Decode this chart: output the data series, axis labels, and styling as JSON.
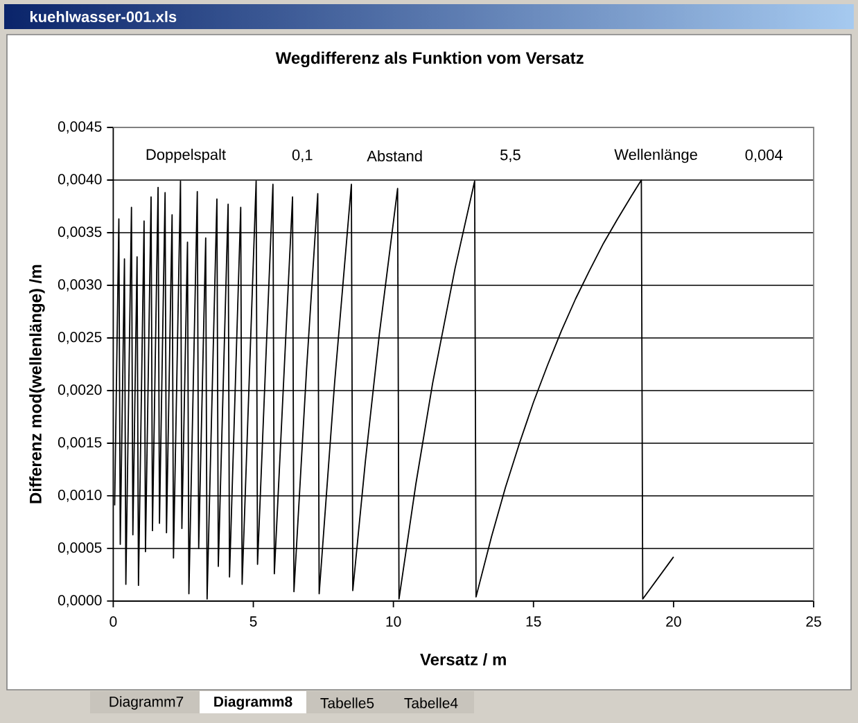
{
  "chart_data": {
    "type": "line",
    "title": "Wegdifferenz als Funktion vom Versatz",
    "xlabel": "Versatz / m",
    "ylabel": "Differenz mod(wellenlänge) /m",
    "series": [
      {
        "color": "#000000",
        "x": [
          0.05,
          0.2,
          0.25,
          0.4,
          0.45,
          0.65,
          0.7,
          0.85,
          0.9,
          1.1,
          1.15,
          1.35,
          1.4,
          1.6,
          1.65,
          1.85,
          1.9,
          2.1,
          2.15,
          2.4,
          2.45,
          2.65,
          2.7,
          3.0,
          3.05,
          3.3,
          3.35,
          3.7,
          3.75,
          4.1,
          4.15,
          4.55,
          4.6,
          5.1,
          5.15,
          5.7,
          5.75,
          6.4,
          6.45,
          6.9,
          7.3,
          7.35,
          7.9,
          8.5,
          8.55,
          9.0,
          9.5,
          10.15,
          10.2,
          10.8,
          11.4,
          12.2,
          12.9,
          12.95,
          13.5,
          14.0,
          14.5,
          15.0,
          15.5,
          16.0,
          16.5,
          17.0,
          17.5,
          18.0,
          18.5,
          18.85,
          18.9,
          20.0
        ],
        "values": [
          0.00091,
          0.00363,
          0.00054,
          0.00325,
          0.00016,
          0.00374,
          0.00063,
          0.00327,
          0.00015,
          0.00361,
          0.00047,
          0.00384,
          0.00067,
          0.00393,
          0.00074,
          0.00388,
          0.00065,
          0.00367,
          0.00041,
          0.00399,
          0.00069,
          0.00341,
          7e-05,
          0.00389,
          0.0005,
          0.00345,
          2e-05,
          0.00382,
          0.00033,
          0.00377,
          0.00023,
          0.00374,
          0.00016,
          0.00399,
          0.00035,
          0.00396,
          0.00026,
          0.00384,
          9e-05,
          0.0022,
          0.00387,
          7e-05,
          0.00207,
          0.00396,
          0.0001,
          0.00133,
          0.00254,
          0.00392,
          2e-05,
          0.00111,
          0.00207,
          0.00316,
          0.00399,
          4e-05,
          0.00061,
          0.00108,
          0.0015,
          0.00189,
          0.00224,
          0.00257,
          0.00287,
          0.00314,
          0.0034,
          0.00363,
          0.00385,
          0.004,
          2e-05,
          0.00042
        ]
      }
    ],
    "xlim": [
      0,
      25
    ],
    "xticks": [
      0,
      5,
      10,
      15,
      20,
      25
    ],
    "ylim": [
      0,
      0.0045
    ],
    "yticks": [
      {
        "value": 0,
        "label": "0,0000"
      },
      {
        "value": 0.0005,
        "label": "0,0005"
      },
      {
        "value": 0.001,
        "label": "0,0010"
      },
      {
        "value": 0.0015,
        "label": "0,0015"
      },
      {
        "value": 0.002,
        "label": "0,0020"
      },
      {
        "value": 0.0025,
        "label": "0,0025"
      },
      {
        "value": 0.003,
        "label": "0,0030"
      },
      {
        "value": 0.0035,
        "label": "0,0035"
      },
      {
        "value": 0.004,
        "label": "0,0040"
      },
      {
        "value": 0.0045,
        "label": "0,0045"
      }
    ],
    "grid": "y",
    "line_style": "solid",
    "annotations": [
      "Doppelspalt",
      "0,1",
      "Abstand",
      "5,5",
      "Wellenlänge",
      "0,004",
      "kuehlwasser-001.xls",
      "Diagramm7",
      "Diagramm8",
      "Tabelle5",
      "Tabelle4"
    ]
  }
}
